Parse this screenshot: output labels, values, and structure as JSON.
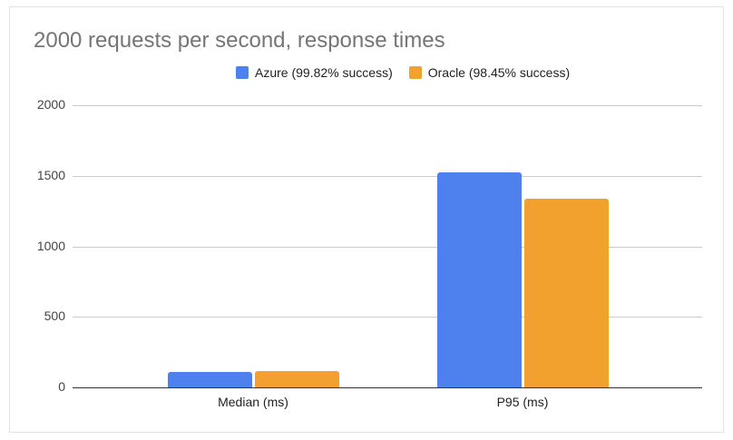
{
  "chart_data": {
    "type": "bar",
    "title": "2000 requests per second, response times",
    "categories": [
      "Median (ms)",
      "P95 (ms)"
    ],
    "series": [
      {
        "name": "Azure (99.82% success)",
        "color": "#4f81ee",
        "values": [
          110,
          1527
        ]
      },
      {
        "name": "Oracle (98.45% success)",
        "color": "#f2a02e",
        "values": [
          116,
          1340
        ]
      }
    ],
    "xlabel": "",
    "ylabel": "",
    "ylim": [
      0,
      2000
    ],
    "yticks": [
      "0",
      "500",
      "1000",
      "1500",
      "2000"
    ],
    "grid": true,
    "legend_position": "top"
  }
}
